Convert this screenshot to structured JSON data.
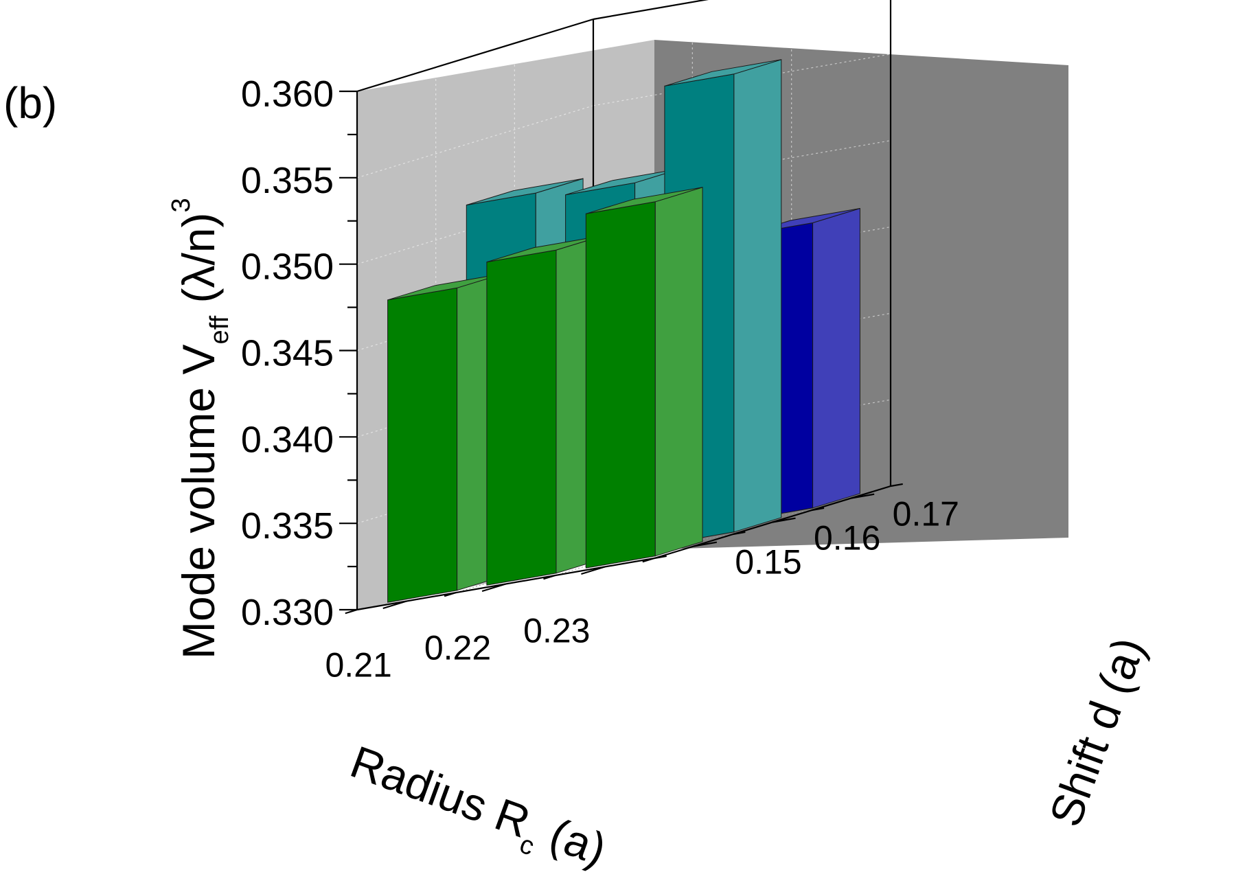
{
  "panel_label": "(b)",
  "chart_data": {
    "type": "bar3d",
    "z_label": {
      "main": "Mode volume V",
      "sub": "eff",
      "tail": " (λ/n)",
      "sup": "3"
    },
    "x_label": {
      "main": "Radius R",
      "sub": "c",
      "tail": " (a)"
    },
    "y_label": "Shift d (a)",
    "x_categories": [
      "0.21",
      "0.22",
      "0.23"
    ],
    "y_categories": [
      "0.15",
      "0.16",
      "0.17"
    ],
    "z_ticks": [
      "0.330",
      "0.335",
      "0.340",
      "0.345",
      "0.350",
      "0.355",
      "0.360"
    ],
    "zlim": [
      0.33,
      0.36
    ],
    "grid": true,
    "bars": [
      {
        "x": "0.21",
        "y": "0.15",
        "value": 0.3475,
        "color": "#008000"
      },
      {
        "x": "0.22",
        "y": "0.15",
        "value": 0.3487,
        "color": "#008000"
      },
      {
        "x": "0.23",
        "y": "0.15",
        "value": 0.3505,
        "color": "#008000"
      },
      {
        "x": "0.21",
        "y": "0.16",
        "value": 0.3516,
        "color": "#008080"
      },
      {
        "x": "0.22",
        "y": "0.16",
        "value": 0.3512,
        "color": "#008080"
      },
      {
        "x": "0.23",
        "y": "0.16",
        "value": 0.3565,
        "color": "#008080"
      },
      {
        "x": "0.23",
        "y": "0.17",
        "value": 0.3465,
        "color": "#0000A0"
      }
    ]
  }
}
